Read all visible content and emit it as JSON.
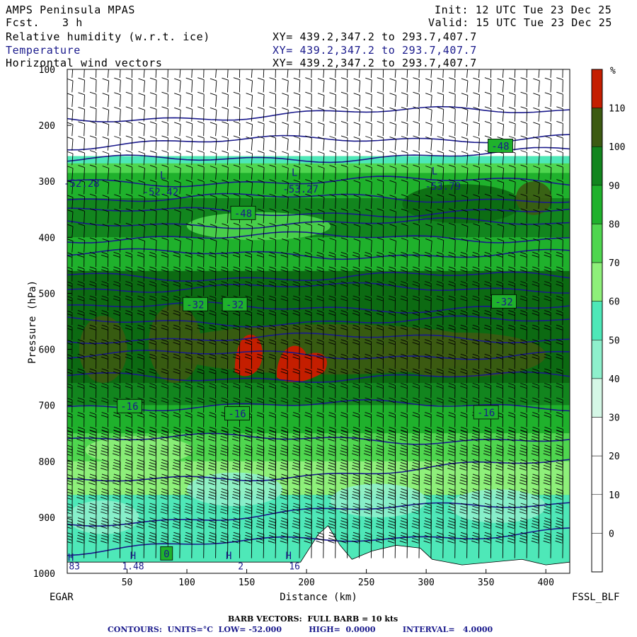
{
  "header": {
    "model": "AMPS Peninsula MPAS",
    "fcst_label": "Fcst.",
    "fcst_value": "3 h",
    "init": "Init: 12 UTC Tue 23 Dec 25",
    "valid": "Valid: 15 UTC Tue 23 Dec 25",
    "fields": [
      {
        "name": "Relative humidity (w.r.t. ice)",
        "xy": "XY= 439.2,347.2 to 293.7,407.7"
      },
      {
        "name": "Temperature",
        "xy": "XY= 439.2,347.2 to 293.7,407.7"
      },
      {
        "name": "Horizontal wind vectors",
        "xy": "XY= 439.2,347.2 to 293.7,407.7"
      }
    ]
  },
  "footer": {
    "barb": "BARB VECTORS:  FULL BARB = 10 kts",
    "contours": "CONTOURS:  UNITS=°C  LOW= -52.000          HIGH=  0.0000          INTERVAL=   4.0000"
  },
  "chart_data": {
    "type": "heatmap",
    "xlabel": "Distance (km)",
    "ylabel": "Pressure (hPa)",
    "xlim": [
      0,
      420
    ],
    "ylim": [
      1000,
      100
    ],
    "x_ticks": [
      50,
      100,
      150,
      200,
      250,
      300,
      350,
      400
    ],
    "y_ticks": [
      100,
      200,
      300,
      400,
      500,
      600,
      700,
      800,
      900,
      1000
    ],
    "left_endpoint": "EGAR",
    "right_endpoint": "FSSL_BLF",
    "colorbar": {
      "unit": "%",
      "levels": [
        0,
        10,
        20,
        30,
        40,
        50,
        60,
        70,
        80,
        90,
        100,
        110
      ],
      "colors": [
        "#ffffff",
        "#ffffff",
        "#ffffff",
        "#ffffff",
        "#d5f7e6",
        "#8ef0cc",
        "#4ee8b8",
        "#8ef07a",
        "#4fd64f",
        "#1fb12c",
        "#12851e",
        "#0c6a12",
        "#3c5a12",
        "#c41e00"
      ]
    },
    "temperature_labels": [
      {
        "text": "-48",
        "x": 362,
        "p": 237
      },
      {
        "text": "-48",
        "x": 147,
        "p": 357
      },
      {
        "text": "-32",
        "x": 107,
        "p": 520
      },
      {
        "text": "-32",
        "x": 140,
        "p": 520
      },
      {
        "text": "-32",
        "x": 365,
        "p": 515
      },
      {
        "text": "-16",
        "x": 52,
        "p": 702
      },
      {
        "text": "-16",
        "x": 142,
        "p": 715
      },
      {
        "text": "-16",
        "x": 350,
        "p": 713
      },
      {
        "text": "0",
        "x": 83,
        "p": 965
      }
    ],
    "min_labels": [
      {
        "text": "-52.28",
        "x": 12,
        "p": 310
      },
      {
        "text": "-52.42",
        "x": 78,
        "p": 325
      },
      {
        "text": "-53.27",
        "x": 195,
        "p": 320
      },
      {
        "text": "-53.79",
        "x": 314,
        "p": 315
      }
    ],
    "low_marks": [
      {
        "text": "L",
        "x": 80,
        "p": 295
      },
      {
        "text": "L",
        "x": 190,
        "p": 290
      },
      {
        "text": "L",
        "x": 307,
        "p": 288
      }
    ],
    "high_marks": [
      {
        "text": "H",
        "x": 3,
        "p": 978
      },
      {
        "text": "H",
        "x": 55,
        "p": 975
      },
      {
        "text": "H",
        "x": 135,
        "p": 975
      },
      {
        "text": "H",
        "x": 185,
        "p": 975
      }
    ],
    "bottom_labels": [
      {
        "text": "83",
        "x": 6,
        "p": 993
      },
      {
        "text": "1.48",
        "x": 55,
        "p": 993
      },
      {
        "text": "2",
        "x": 145,
        "p": 993
      },
      {
        "text": "16",
        "x": 190,
        "p": 993
      }
    ],
    "isotherm_pressures": [
      188,
      235,
      265,
      300,
      330,
      355,
      375,
      400,
      430,
      470,
      490,
      525,
      550,
      580,
      610,
      650,
      700,
      760,
      840,
      910,
      960
    ]
  }
}
